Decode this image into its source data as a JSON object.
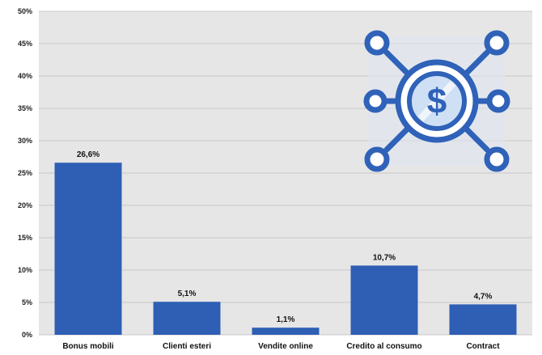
{
  "chart_data": {
    "type": "bar",
    "categories": [
      "Bonus mobili",
      "Clienti esteri",
      "Vendite online",
      "Credito al consumo",
      "Contract"
    ],
    "values": [
      26.6,
      5.1,
      1.1,
      10.7,
      4.7
    ],
    "data_labels": [
      "26,6%",
      "5,1%",
      "1,1%",
      "10,7%",
      "4,7%"
    ],
    "ylim": [
      0,
      50
    ],
    "y_ticks": [
      0,
      5,
      10,
      15,
      20,
      25,
      30,
      35,
      40,
      45,
      50
    ],
    "y_tick_labels": [
      "0%",
      "5%",
      "10%",
      "15%",
      "20%",
      "25%",
      "30%",
      "35%",
      "40%",
      "45%",
      "50%"
    ],
    "grid": true,
    "title": "",
    "xlabel": "",
    "ylabel": "",
    "bar_color": "#2e5fb5",
    "plot_background": "#e6e6e6",
    "gridline_color": "#c8c8c8"
  },
  "icons": {
    "network_dollar_icon": "network-dollar-icon",
    "icon_color": "#2f62b8"
  }
}
